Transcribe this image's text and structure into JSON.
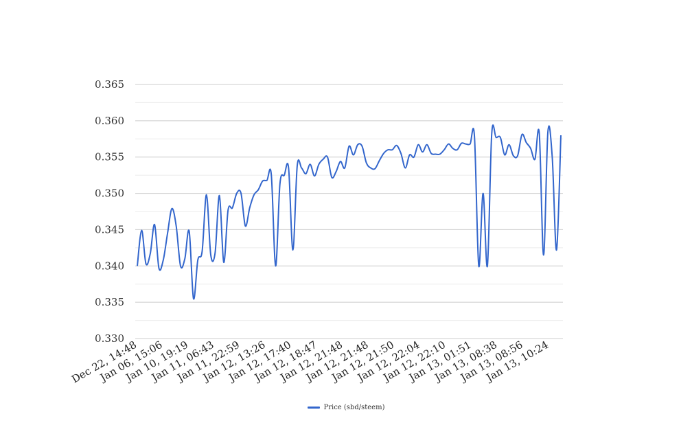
{
  "chart_data": {
    "type": "line",
    "title": "",
    "xlabel": "",
    "ylabel": "",
    "ylim": [
      0.33,
      0.365
    ],
    "y_ticks": [
      0.33,
      0.335,
      0.34,
      0.345,
      0.35,
      0.355,
      0.36,
      0.365
    ],
    "y_tick_labels": [
      "0.330",
      "0.335",
      "0.340",
      "0.345",
      "0.350",
      "0.355",
      "0.360",
      "0.365"
    ],
    "x_tick_labels": [
      "Dec 22, 14:48",
      "Jan 06, 15:06",
      "Jan 10, 19:19",
      "Jan 11, 06:43",
      "Jan 11, 22:59",
      "Jan 12, 13:26",
      "Jan 12, 17:40",
      "Jan 12, 18:47",
      "Jan 12, 21:48",
      "Jan 12, 21:48",
      "Jan 12, 21:50",
      "Jan 12, 22:04",
      "Jan 12, 22:10",
      "Jan 13, 01:51",
      "Jan 13, 08:38",
      "Jan 13, 08:56",
      "Jan 13, 10:24"
    ],
    "grid": true,
    "legend_position": "bottom-center",
    "series": [
      {
        "name": "Price (sbd/steem)",
        "color": "#3366cc",
        "values": [
          0.34,
          0.3449,
          0.3403,
          0.3417,
          0.3457,
          0.3397,
          0.3408,
          0.3445,
          0.3479,
          0.3455,
          0.34,
          0.341,
          0.3448,
          0.3355,
          0.3408,
          0.342,
          0.3498,
          0.3415,
          0.3418,
          0.3497,
          0.3405,
          0.3477,
          0.348,
          0.35,
          0.35,
          0.3455,
          0.348,
          0.3498,
          0.3505,
          0.3517,
          0.3518,
          0.3526,
          0.34,
          0.3513,
          0.3525,
          0.3535,
          0.3422,
          0.3538,
          0.3535,
          0.3527,
          0.354,
          0.3524,
          0.354,
          0.3547,
          0.355,
          0.3522,
          0.353,
          0.3544,
          0.3535,
          0.3565,
          0.3553,
          0.3567,
          0.3565,
          0.3542,
          0.3535,
          0.3534,
          0.3545,
          0.3555,
          0.356,
          0.356,
          0.3566,
          0.3555,
          0.3535,
          0.3553,
          0.355,
          0.3567,
          0.3557,
          0.3567,
          0.3555,
          0.3554,
          0.3554,
          0.356,
          0.3568,
          0.3562,
          0.356,
          0.3569,
          0.3568,
          0.3568,
          0.3579,
          0.34,
          0.35,
          0.34,
          0.3582,
          0.3577,
          0.3577,
          0.3553,
          0.3567,
          0.3552,
          0.3552,
          0.3581,
          0.357,
          0.3562,
          0.3547,
          0.3583,
          0.3415,
          0.3585,
          0.355,
          0.3422,
          0.358
        ]
      }
    ]
  }
}
